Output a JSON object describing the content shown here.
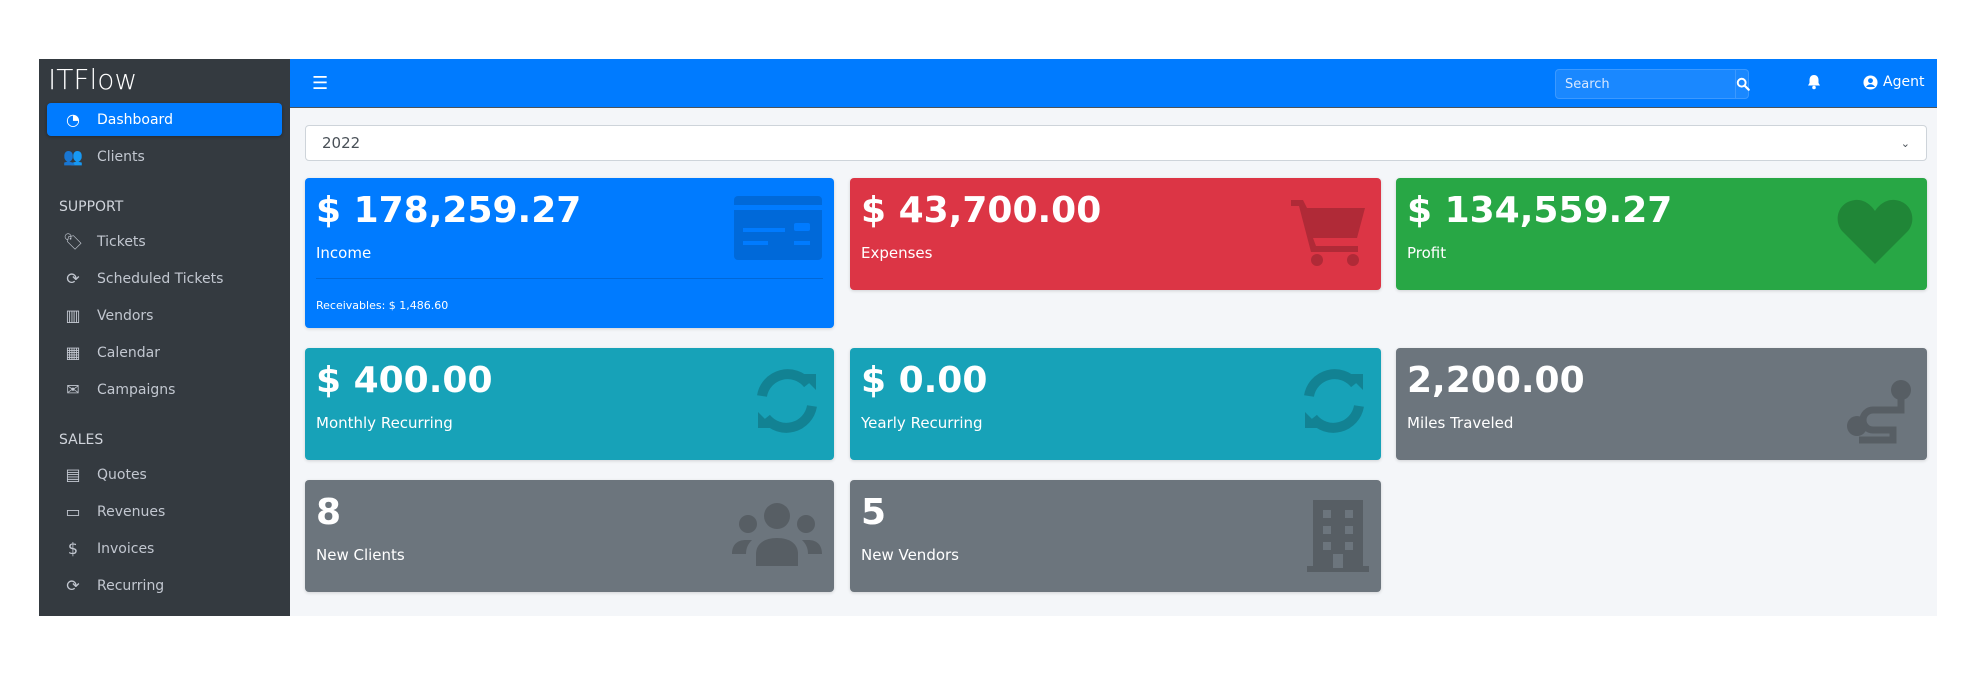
{
  "app": {
    "title": "ITFlow"
  },
  "sidebar": {
    "items": [
      {
        "label": "Dashboard",
        "icon": "dashboard-gauge-icon",
        "active": true
      },
      {
        "label": "Clients",
        "icon": "users-icon"
      }
    ],
    "support_header": "SUPPORT",
    "support": [
      {
        "label": "Tickets",
        "icon": "tags-icon"
      },
      {
        "label": "Scheduled Tickets",
        "icon": "sync-icon"
      },
      {
        "label": "Vendors",
        "icon": "building-icon"
      },
      {
        "label": "Calendar",
        "icon": "calendar-icon"
      },
      {
        "label": "Campaigns",
        "icon": "envelope-icon"
      }
    ],
    "sales_header": "SALES",
    "sales": [
      {
        "label": "Quotes",
        "icon": "file-icon"
      },
      {
        "label": "Revenues",
        "icon": "credit-card-icon"
      },
      {
        "label": "Invoices",
        "icon": "file-invoice-dollar-icon"
      },
      {
        "label": "Recurring",
        "icon": "sync-icon"
      }
    ]
  },
  "navbar": {
    "search_placeholder": "Search",
    "user": "Agent"
  },
  "filter": {
    "year": "2022"
  },
  "cards": {
    "income": {
      "value": "$ 178,259.27",
      "label": "Income",
      "footer": "Receivables: $ 1,486.60",
      "color": "#007bff"
    },
    "expenses": {
      "value": "$ 43,700.00",
      "label": "Expenses",
      "color": "#dc3545"
    },
    "profit": {
      "value": "$ 134,559.27",
      "label": "Profit",
      "color": "#28a745"
    },
    "monthly": {
      "value": "$ 400.00",
      "label": "Monthly Recurring",
      "color": "#17a2b8"
    },
    "yearly": {
      "value": "$ 0.00",
      "label": "Yearly Recurring",
      "color": "#17a2b8"
    },
    "miles": {
      "value": "2,200.00",
      "label": "Miles Traveled",
      "color": "#6c757d"
    },
    "clients": {
      "value": "8",
      "label": "New Clients",
      "color": "#6c757d"
    },
    "vendors": {
      "value": "5",
      "label": "New Vendors",
      "color": "#6c757d"
    }
  }
}
